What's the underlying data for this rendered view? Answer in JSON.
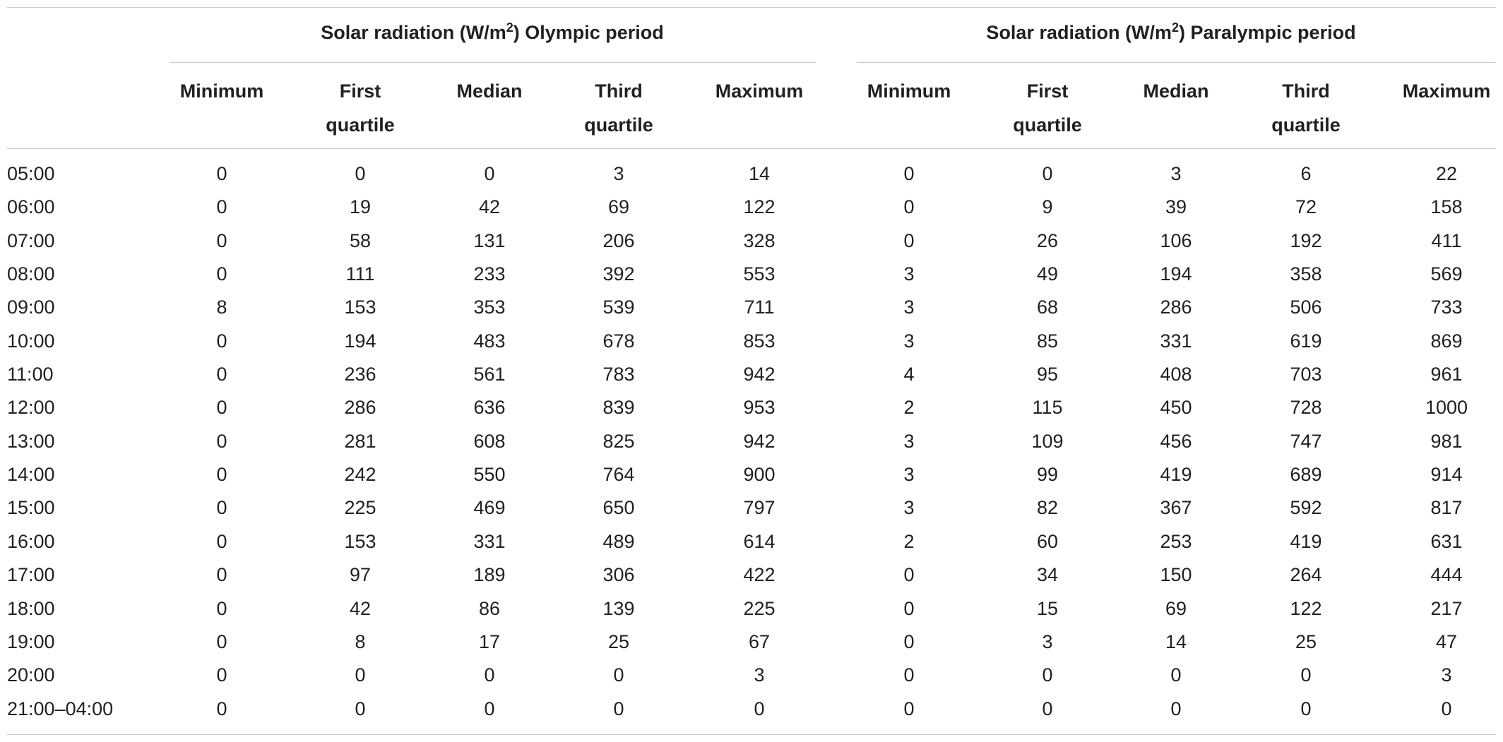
{
  "table": {
    "groups": [
      {
        "prefix": "Solar radiation (W/m",
        "sup": "2",
        "suffix": ") Olympic period"
      },
      {
        "prefix": "Solar radiation (W/m",
        "sup": "2",
        "suffix": ") Paralympic period"
      }
    ],
    "columns": [
      [
        "Minimum",
        ""
      ],
      [
        "First",
        "quartile"
      ],
      [
        "Median",
        ""
      ],
      [
        "Third",
        "quartile"
      ],
      [
        "Maximum",
        ""
      ],
      [
        "Minimum",
        ""
      ],
      [
        "First",
        "quartile"
      ],
      [
        "Median",
        ""
      ],
      [
        "Third",
        "quartile"
      ],
      [
        "Maximum",
        ""
      ]
    ],
    "rows": [
      {
        "label": "05:00",
        "values": [
          "0",
          "0",
          "0",
          "3",
          "14",
          "0",
          "0",
          "3",
          "6",
          "22"
        ]
      },
      {
        "label": "06:00",
        "values": [
          "0",
          "19",
          "42",
          "69",
          "122",
          "0",
          "9",
          "39",
          "72",
          "158"
        ]
      },
      {
        "label": "07:00",
        "values": [
          "0",
          "58",
          "131",
          "206",
          "328",
          "0",
          "26",
          "106",
          "192",
          "411"
        ]
      },
      {
        "label": "08:00",
        "values": [
          "0",
          "111",
          "233",
          "392",
          "553",
          "3",
          "49",
          "194",
          "358",
          "569"
        ]
      },
      {
        "label": "09:00",
        "values": [
          "8",
          "153",
          "353",
          "539",
          "711",
          "3",
          "68",
          "286",
          "506",
          "733"
        ]
      },
      {
        "label": "10:00",
        "values": [
          "0",
          "194",
          "483",
          "678",
          "853",
          "3",
          "85",
          "331",
          "619",
          "869"
        ]
      },
      {
        "label": "11:00",
        "values": [
          "0",
          "236",
          "561",
          "783",
          "942",
          "4",
          "95",
          "408",
          "703",
          "961"
        ]
      },
      {
        "label": "12:00",
        "values": [
          "0",
          "286",
          "636",
          "839",
          "953",
          "2",
          "115",
          "450",
          "728",
          "1000"
        ]
      },
      {
        "label": "13:00",
        "values": [
          "0",
          "281",
          "608",
          "825",
          "942",
          "3",
          "109",
          "456",
          "747",
          "981"
        ]
      },
      {
        "label": "14:00",
        "values": [
          "0",
          "242",
          "550",
          "764",
          "900",
          "3",
          "99",
          "419",
          "689",
          "914"
        ]
      },
      {
        "label": "15:00",
        "values": [
          "0",
          "225",
          "469",
          "650",
          "797",
          "3",
          "82",
          "367",
          "592",
          "817"
        ]
      },
      {
        "label": "16:00",
        "values": [
          "0",
          "153",
          "331",
          "489",
          "614",
          "2",
          "60",
          "253",
          "419",
          "631"
        ]
      },
      {
        "label": "17:00",
        "values": [
          "0",
          "97",
          "189",
          "306",
          "422",
          "0",
          "34",
          "150",
          "264",
          "444"
        ]
      },
      {
        "label": "18:00",
        "values": [
          "0",
          "42",
          "86",
          "139",
          "225",
          "0",
          "15",
          "69",
          "122",
          "217"
        ]
      },
      {
        "label": "19:00",
        "values": [
          "0",
          "8",
          "17",
          "25",
          "67",
          "0",
          "3",
          "14",
          "25",
          "47"
        ]
      },
      {
        "label": "20:00",
        "values": [
          "0",
          "0",
          "0",
          "0",
          "3",
          "0",
          "0",
          "0",
          "0",
          "3"
        ]
      },
      {
        "label": "21:00–04:00",
        "values": [
          "0",
          "0",
          "0",
          "0",
          "0",
          "0",
          "0",
          "0",
          "0",
          "0"
        ]
      }
    ]
  }
}
